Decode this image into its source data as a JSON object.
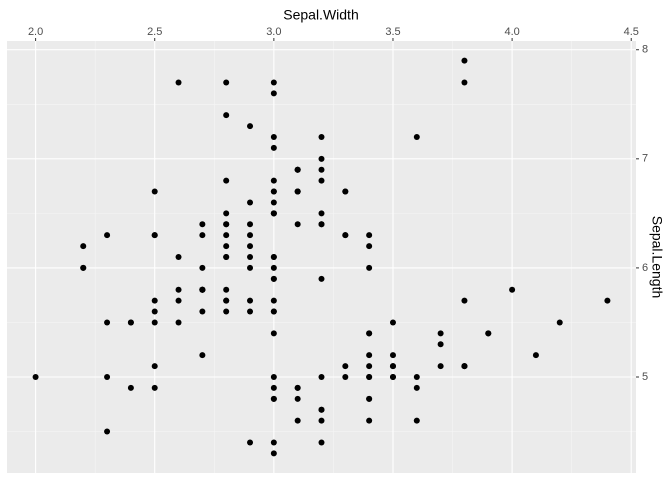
{
  "chart_data": {
    "type": "scatter",
    "x_label": "Sepal.Width",
    "y_label": "Sepal.Length",
    "x_axis_position": "top",
    "y_axis_position": "right",
    "color": "#000000",
    "grid": true,
    "xlim": [
      1.88,
      4.52
    ],
    "ylim": [
      4.12,
      8.08
    ],
    "xticks": [
      {
        "value": 2,
        "label": "2.0"
      },
      2.5,
      {
        "value": 3,
        "label": "3.0"
      },
      3.5,
      {
        "value": 4,
        "label": "4.0"
      },
      4.5
    ],
    "yticks": [
      5,
      6,
      7,
      8
    ],
    "x": [
      3.5,
      3.0,
      3.2,
      3.1,
      3.6,
      3.9,
      3.4,
      3.4,
      2.9,
      3.1,
      3.7,
      3.4,
      3.0,
      3.0,
      4.0,
      4.4,
      3.9,
      3.5,
      3.8,
      3.8,
      3.4,
      3.7,
      3.6,
      3.3,
      3.4,
      3.0,
      3.4,
      3.5,
      3.4,
      3.2,
      3.1,
      3.4,
      4.1,
      4.2,
      3.1,
      3.2,
      3.5,
      3.6,
      3.0,
      3.4,
      3.5,
      2.3,
      3.2,
      3.5,
      3.8,
      3.0,
      3.8,
      3.2,
      3.7,
      3.3,
      3.2,
      3.2,
      3.1,
      2.3,
      2.8,
      2.8,
      3.3,
      2.4,
      2.9,
      2.7,
      2.0,
      3.0,
      2.2,
      2.9,
      2.9,
      3.1,
      3.0,
      2.7,
      2.2,
      2.5,
      3.2,
      2.8,
      2.5,
      2.8,
      2.9,
      3.0,
      2.8,
      3.0,
      2.9,
      2.6,
      2.4,
      2.4,
      2.7,
      2.7,
      3.0,
      3.4,
      3.1,
      2.3,
      3.0,
      2.5,
      2.6,
      3.0,
      2.6,
      2.3,
      2.7,
      3.0,
      2.9,
      2.9,
      2.5,
      2.8,
      3.3,
      2.7,
      3.0,
      2.9,
      3.0,
      3.0,
      2.5,
      2.9,
      2.5,
      3.6,
      3.2,
      2.7,
      3.0,
      2.5,
      2.8,
      3.2,
      3.0,
      3.8,
      2.6,
      2.2,
      3.2,
      2.8,
      2.8,
      2.7,
      3.3,
      3.2,
      2.8,
      3.0,
      2.8,
      3.0,
      2.8,
      3.8,
      2.8,
      2.8,
      2.6,
      3.0,
      3.4,
      3.1,
      3.0,
      3.1,
      3.1,
      3.1,
      2.7,
      3.2,
      3.3,
      3.0,
      2.5,
      3.0,
      3.4,
      3.0
    ],
    "values": [
      5.1,
      4.9,
      4.7,
      4.6,
      5.0,
      5.4,
      4.6,
      5.0,
      4.4,
      4.9,
      5.4,
      4.8,
      4.8,
      4.3,
      5.8,
      5.7,
      5.4,
      5.1,
      5.7,
      5.1,
      5.4,
      5.1,
      4.6,
      5.1,
      4.8,
      5.0,
      5.0,
      5.2,
      5.2,
      4.7,
      4.8,
      5.4,
      5.2,
      5.5,
      4.9,
      5.0,
      5.5,
      4.9,
      4.4,
      5.1,
      5.0,
      4.5,
      4.4,
      5.0,
      5.1,
      4.8,
      5.1,
      4.6,
      5.3,
      5.0,
      7.0,
      6.4,
      6.9,
      5.5,
      6.5,
      5.7,
      6.3,
      4.9,
      6.6,
      5.2,
      5.0,
      5.9,
      6.0,
      6.1,
      5.6,
      6.7,
      5.6,
      5.8,
      6.2,
      5.6,
      5.9,
      6.1,
      6.3,
      6.1,
      6.4,
      6.6,
      6.8,
      6.7,
      6.0,
      5.7,
      5.5,
      5.5,
      5.8,
      6.0,
      5.4,
      6.0,
      6.7,
      6.3,
      5.6,
      5.5,
      5.5,
      6.1,
      5.8,
      5.0,
      5.6,
      5.7,
      5.7,
      6.2,
      5.1,
      5.7,
      6.3,
      5.8,
      7.1,
      6.3,
      6.5,
      7.6,
      4.9,
      7.3,
      6.7,
      7.2,
      6.5,
      6.4,
      6.8,
      5.7,
      5.8,
      6.4,
      6.5,
      7.7,
      7.7,
      6.0,
      6.9,
      5.6,
      7.7,
      6.3,
      6.7,
      7.2,
      6.2,
      6.1,
      6.4,
      7.2,
      7.4,
      7.9,
      6.4,
      6.3,
      6.1,
      7.7,
      6.3,
      6.4,
      6.0,
      6.9,
      6.7,
      6.9,
      5.8,
      6.8,
      6.7,
      6.7,
      6.3,
      6.5,
      6.2,
      5.9
    ]
  }
}
